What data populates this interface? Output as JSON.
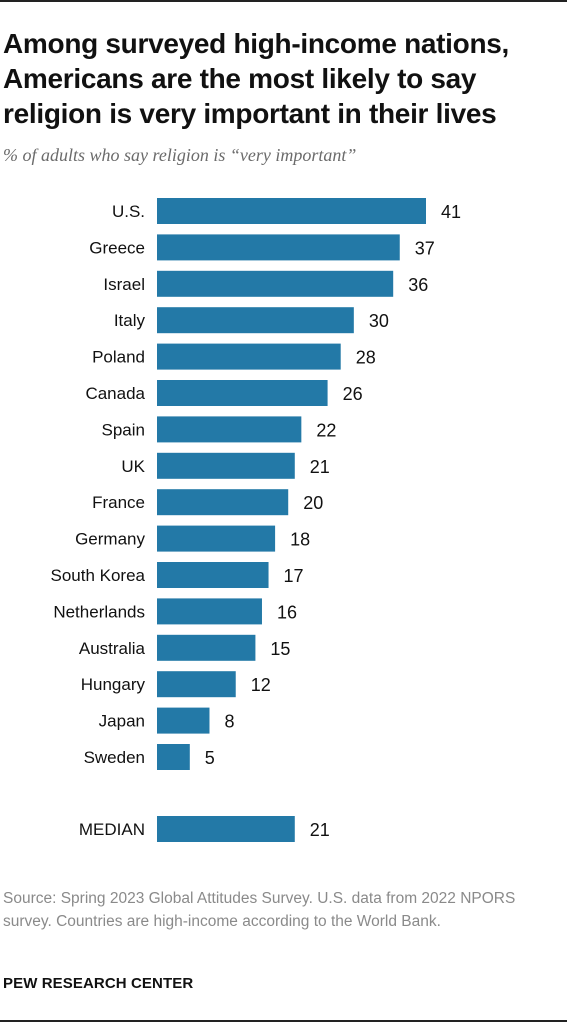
{
  "title": "Among surveyed high-income nations, Americans are the most likely to say religion is very important in their lives",
  "subtitle": "% of adults who say religion is “very important”",
  "source": "Source: Spring 2023 Global Attitudes Survey. U.S. data from 2022 NPORS survey. Countries are high-income according to the World Bank.",
  "organization": "PEW RESEARCH CENTER",
  "colors": {
    "bar": "#2379a7",
    "text": "#111111",
    "muted": "#8a8a8a"
  },
  "chart_data": {
    "type": "bar",
    "orientation": "horizontal",
    "categories": [
      "U.S.",
      "Greece",
      "Israel",
      "Italy",
      "Poland",
      "Canada",
      "Spain",
      "UK",
      "France",
      "Germany",
      "South Korea",
      "Netherlands",
      "Australia",
      "Hungary",
      "Japan",
      "Sweden"
    ],
    "values": [
      41,
      37,
      36,
      30,
      28,
      26,
      22,
      21,
      20,
      18,
      17,
      16,
      15,
      12,
      8,
      5
    ],
    "summary": {
      "label": "MEDIAN",
      "value": 21
    },
    "xlim": [
      0,
      41
    ],
    "grid": false,
    "xlabel": "",
    "ylabel": ""
  }
}
